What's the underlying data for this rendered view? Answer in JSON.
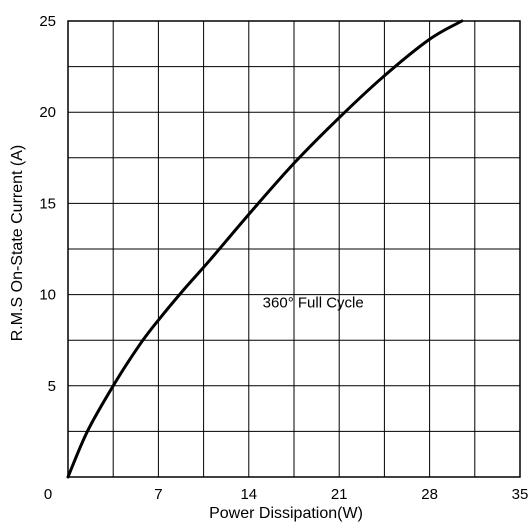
{
  "chart_data": {
    "type": "line",
    "title": "",
    "xlabel": "Power Dissipation(W)",
    "ylabel": "R.M.S On-State Current (A)",
    "xlim": [
      0,
      35
    ],
    "ylim": [
      0,
      25
    ],
    "x_ticks": [
      0,
      7,
      14,
      21,
      28,
      35
    ],
    "x_tick_labels": [
      "0",
      "7",
      "14",
      "21",
      "28",
      "35"
    ],
    "y_ticks": [
      0,
      5,
      10,
      15,
      20,
      25
    ],
    "y_tick_labels": [
      "",
      "5",
      "10",
      "15",
      "20",
      "25"
    ],
    "x_gridlines": [
      0,
      3.5,
      7,
      10.5,
      14,
      17.5,
      21,
      24.5,
      28,
      31.5,
      35
    ],
    "y_gridlines": [
      0,
      2.5,
      5,
      7.5,
      10,
      12.5,
      15,
      17.5,
      20,
      22.5,
      25
    ],
    "grid": true,
    "line_color": "#000000",
    "series": [
      {
        "x": [
          0,
          1.5,
          3.5,
          5.5,
          7,
          9,
          11,
          14,
          17.5,
          21,
          24.5,
          28,
          30.5
        ],
        "y": [
          0,
          2.5,
          5,
          7.2,
          8.6,
          10.3,
          11.9,
          14.4,
          17.2,
          19.7,
          22.0,
          24.0,
          25
        ]
      }
    ],
    "annotations": [
      {
        "text": "360° Full Cycle",
        "x": 21,
        "y": 9.3
      }
    ]
  }
}
